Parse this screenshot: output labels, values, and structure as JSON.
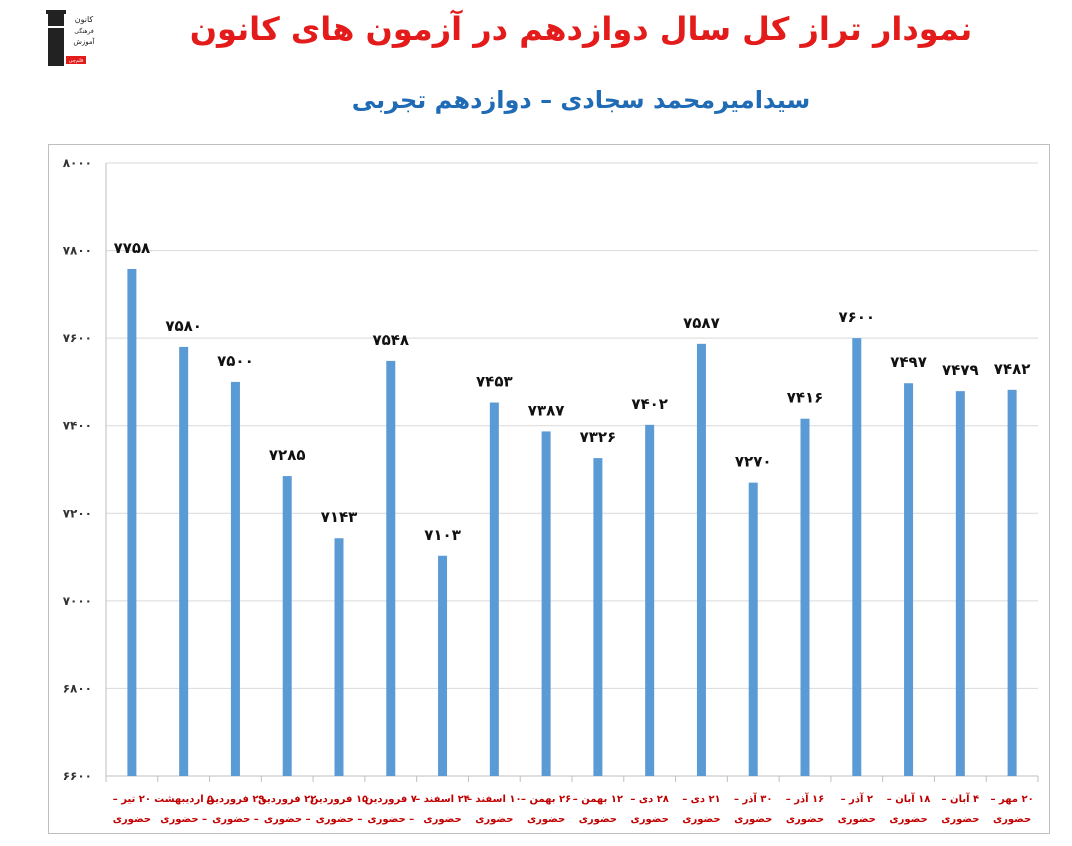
{
  "header": {
    "title": "نمودار تراز کل سال دوازدهم در آزمون های کانون",
    "subtitle": "سیدامیرمحمد سجادی – دوازدهم تجربی",
    "logo_lines": [
      "کانون",
      "فرهنگی",
      "آموزش",
      "قلم‌چی"
    ]
  },
  "colors": {
    "bar": "#5b9bd5",
    "title": "#e31b1b",
    "subtitle": "#1f6bb5",
    "xlabel": "#c00000",
    "grid": "#d9d9d9"
  },
  "chart_data": {
    "type": "bar",
    "title": "",
    "xlabel": "",
    "ylabel": "",
    "ylim": [
      6600,
      8000
    ],
    "yticks": [
      6600,
      6800,
      7000,
      7200,
      7400,
      7600,
      7800,
      8000
    ],
    "ytick_labels": [
      "۶۶۰۰",
      "۶۸۰۰",
      "۷۰۰۰",
      "۷۲۰۰",
      "۷۴۰۰",
      "۷۶۰۰",
      "۷۸۰۰",
      "۸۰۰۰"
    ],
    "grid": "horizontal",
    "legend": "none",
    "categories": [
      [
        "۲۰ مهر –",
        "حضوری"
      ],
      [
        "۴ آبان –",
        "حضوری"
      ],
      [
        "۱۸ آبان –",
        "حضوری"
      ],
      [
        "۲ آذر –",
        "حضوری"
      ],
      [
        "۱۶ آذر –",
        "حضوری"
      ],
      [
        "۳۰ آذر –",
        "حضوری"
      ],
      [
        "۲۱ دی –",
        "حضوری"
      ],
      [
        "۲۸ دی –",
        "حضوری"
      ],
      [
        "۱۲ بهمن –",
        "حضوری"
      ],
      [
        "۲۶ بهمن –",
        "حضوری"
      ],
      [
        "۱۰ اسفند –",
        "حضوری"
      ],
      [
        "۲۴ اسفند –",
        "حضوری"
      ],
      [
        "۷ فروردین",
        "– حضوری"
      ],
      [
        "۱۵ فروردین",
        "– حضوری"
      ],
      [
        "۲۲ فروردین",
        "– حضوری"
      ],
      [
        "۲۹ فروردین",
        "– حضوری"
      ],
      [
        "۵ اردیبهشت",
        "– حضوری"
      ],
      [
        "۲۰ تیر –",
        "حضوری"
      ]
    ],
    "values": [
      7482,
      7479,
      7497,
      7600,
      7416,
      7270,
      7587,
      7402,
      7326,
      7387,
      7453,
      7103,
      7548,
      7143,
      7285,
      7500,
      7580,
      7758
    ],
    "value_labels": [
      "۷۴۸۲",
      "۷۴۷۹",
      "۷۴۹۷",
      "۷۶۰۰",
      "۷۴۱۶",
      "۷۲۷۰",
      "۷۵۸۷",
      "۷۴۰۲",
      "۷۳۲۶",
      "۷۳۸۷",
      "۷۴۵۳",
      "۷۱۰۳",
      "۷۵۴۸",
      "۷۱۴۳",
      "۷۲۸۵",
      "۷۵۰۰",
      "۷۵۸۰",
      "۷۷۵۸"
    ]
  }
}
